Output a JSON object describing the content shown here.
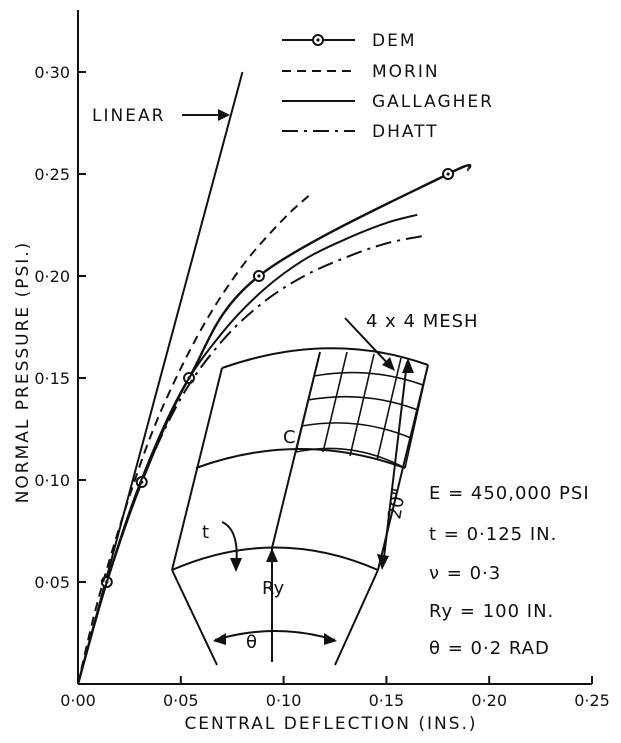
{
  "chart_data": {
    "type": "line",
    "xlabel": "CENTRAL DEFLECTION (INS.)",
    "ylabel": "NORMAL PRESSURE (PSI.)",
    "xlim": [
      0.0,
      0.25
    ],
    "ylim": [
      0.0,
      0.32
    ],
    "x_ticks": [
      0.0,
      0.05,
      0.1,
      0.15,
      0.2,
      0.25
    ],
    "x_tick_labels": [
      "0·00",
      "0·05",
      "0·10",
      "0·15",
      "0·20",
      "0·25"
    ],
    "y_ticks": [
      0.05,
      0.1,
      0.15,
      0.2,
      0.25,
      0.3
    ],
    "y_tick_labels": [
      "0·05",
      "0·10",
      "0·15",
      "0·20",
      "0·25",
      "0·30"
    ],
    "grid": false,
    "legend_position": "top-center",
    "series": [
      {
        "name": "DEM",
        "style": "solid-circle-markers",
        "x": [
          0.0,
          0.014,
          0.031,
          0.054,
          0.088,
          0.18
        ],
        "y": [
          0.0,
          0.05,
          0.099,
          0.15,
          0.2,
          0.25
        ],
        "extend": [
          [
            0.19,
            0.252
          ]
        ]
      },
      {
        "name": "MORIN",
        "style": "dashed",
        "x": [
          0.0,
          0.01,
          0.025,
          0.04,
          0.06,
          0.08,
          0.1,
          0.113
        ],
        "y": [
          0.0,
          0.042,
          0.092,
          0.133,
          0.174,
          0.205,
          0.228,
          0.24
        ]
      },
      {
        "name": "GALLAGHER",
        "style": "solid",
        "x": [
          0.0,
          0.014,
          0.03,
          0.05,
          0.07,
          0.09,
          0.11,
          0.13,
          0.15,
          0.165
        ],
        "y": [
          0.0,
          0.05,
          0.098,
          0.143,
          0.172,
          0.193,
          0.208,
          0.218,
          0.226,
          0.23
        ]
      },
      {
        "name": "DHATT",
        "style": "dash-dot",
        "x": [
          0.0,
          0.014,
          0.03,
          0.05,
          0.07,
          0.09,
          0.11,
          0.13,
          0.15,
          0.17
        ],
        "y": [
          0.0,
          0.05,
          0.097,
          0.14,
          0.168,
          0.187,
          0.2,
          0.209,
          0.216,
          0.22
        ]
      }
    ],
    "linear": {
      "label": "LINEAR",
      "x": [
        0.0,
        0.08
      ],
      "y": [
        0.0,
        0.3
      ]
    }
  },
  "inset": {
    "mesh_label": "4 x 4 MESH",
    "c_label": "C",
    "t_label": "t",
    "ry_label": "Ry",
    "theta_label": "θ",
    "length_label": "20\""
  },
  "properties": [
    "E = 450,000 PSI",
    "t = 0·125 IN.",
    "ν = 0·3",
    "Ry = 100 IN.",
    "θ = 0·2 RAD"
  ]
}
